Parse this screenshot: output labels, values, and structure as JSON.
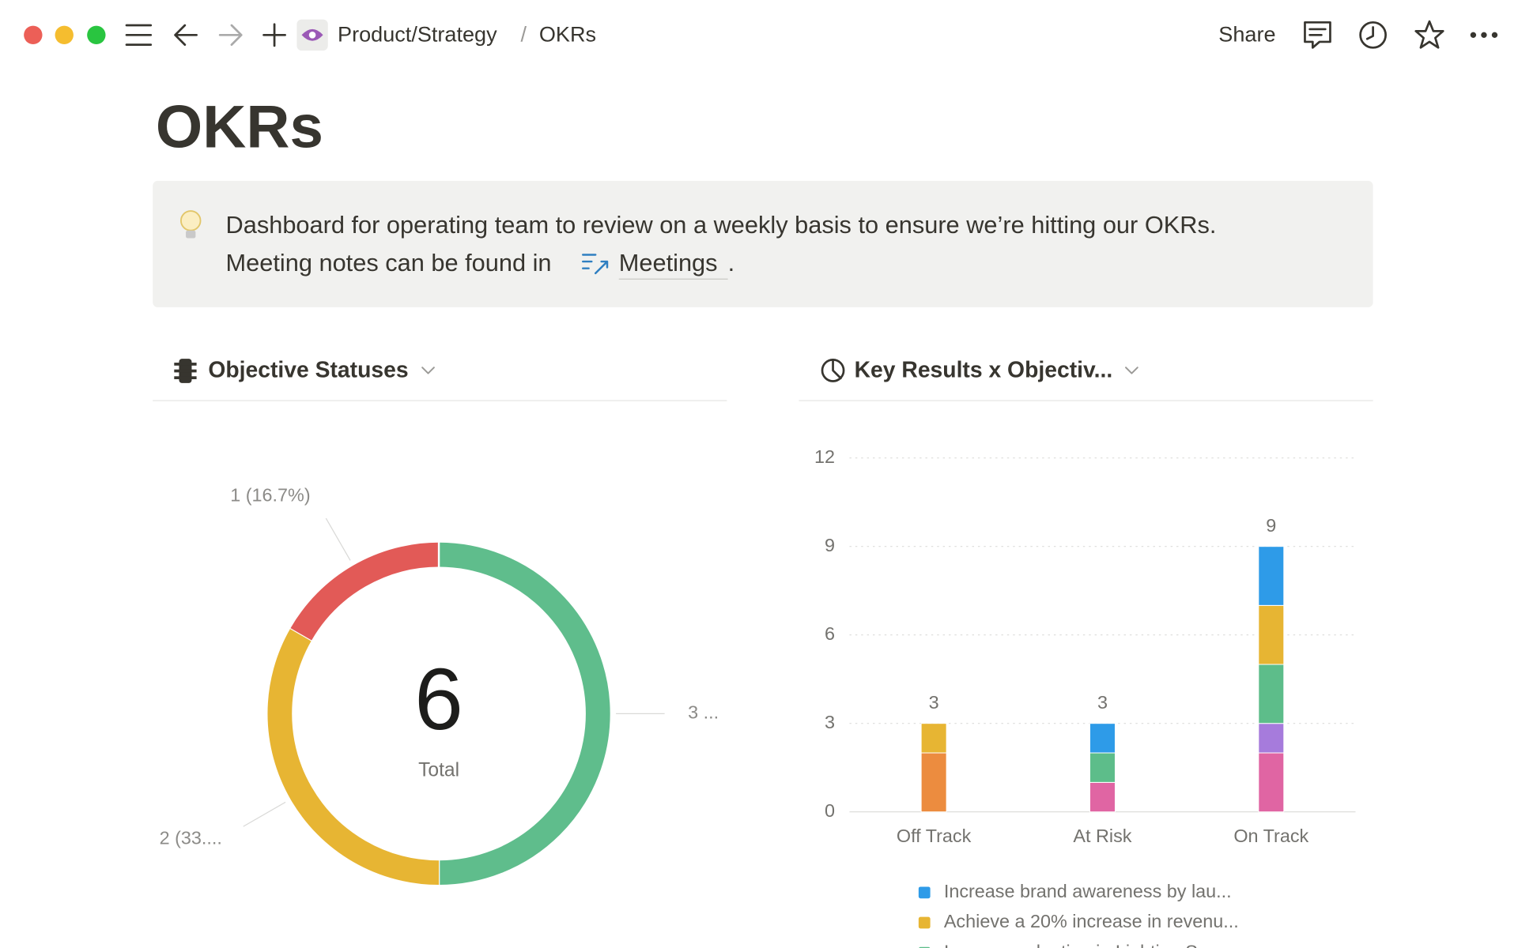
{
  "toolbar": {
    "breadcrumb": [
      "Product/Strategy",
      "/",
      "OKRs"
    ],
    "share": "Share"
  },
  "page": {
    "title": "OKRs",
    "callout": {
      "line1": "Dashboard for operating team to review on a weekly basis to ensure we’re hitting our OKRs.",
      "line2": "Meeting notes can be found in",
      "link": "Meetings",
      "end": "."
    }
  },
  "chart_data": [
    {
      "type": "donut",
      "title": "Objective Statuses",
      "categories": [
        null,
        null,
        null
      ],
      "values": [
        3,
        2,
        1
      ],
      "value_labels": [
        "3 ...",
        "2 (33....",
        "1 (16.7%)"
      ],
      "colors": [
        "#5fbd8c",
        "#e7b533",
        "#e25a57"
      ],
      "center_value": 6,
      "center_label": "Total"
    },
    {
      "type": "stacked-bar",
      "title": "Key Results x Objectiv...",
      "categories": [
        "Off Track",
        "At Risk",
        "On Track"
      ],
      "series": [
        {
          "name": "Increase brand awareness by lau...",
          "color": "#2e9be8",
          "values": [
            0,
            1,
            2
          ]
        },
        {
          "name": "Achieve a 20% increase in revenu...",
          "color": "#e7b533",
          "values": [
            1,
            0,
            2
          ]
        },
        {
          "name": "Increase adoption in Lighting Sea...",
          "color": "#5dbd8a",
          "values": [
            0,
            1,
            2
          ]
        },
        {
          "color": "#a67bdc",
          "values": [
            0,
            0,
            1
          ]
        },
        {
          "color": "#e065a3",
          "values": [
            0,
            1,
            2
          ]
        },
        {
          "color": "#ec8c3f",
          "values": [
            2,
            0,
            0
          ]
        }
      ],
      "totals": [
        3,
        3,
        9
      ],
      "ylim": [
        0,
        12
      ],
      "yticks": [
        0,
        3,
        6,
        9,
        12
      ],
      "grid": true
    }
  ]
}
